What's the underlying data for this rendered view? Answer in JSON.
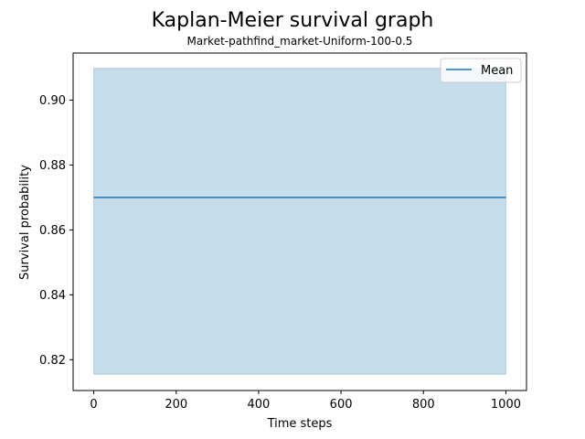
{
  "chart_data": {
    "type": "line",
    "title": "Kaplan-Meier survival graph",
    "subtitle": "Market-pathfind_market-Uniform-100-0.5",
    "xlabel": "Time steps",
    "ylabel": "Survival probability",
    "xlim": [
      -50,
      1050
    ],
    "ylim": [
      0.8105,
      0.9145
    ],
    "x_ticks": [
      0,
      200,
      400,
      600,
      800,
      1000
    ],
    "y_ticks": [
      0.82,
      0.84,
      0.86,
      0.88,
      0.9
    ],
    "x_tick_labels": [
      "0",
      "200",
      "400",
      "600",
      "800",
      "1000"
    ],
    "y_tick_labels": [
      "0.82",
      "0.84",
      "0.86",
      "0.88",
      "0.90"
    ],
    "legend_position": "top-right",
    "series": [
      {
        "name": "Mean",
        "color": "#1f77b4",
        "x": [
          0,
          1000
        ],
        "y": [
          0.87,
          0.87
        ]
      }
    ],
    "band": {
      "x": [
        0,
        1000
      ],
      "lower": [
        0.8155,
        0.8155
      ],
      "upper": [
        0.9098,
        0.9098
      ],
      "color": "#1f77b4",
      "opacity": 0.25
    },
    "grid": false
  }
}
